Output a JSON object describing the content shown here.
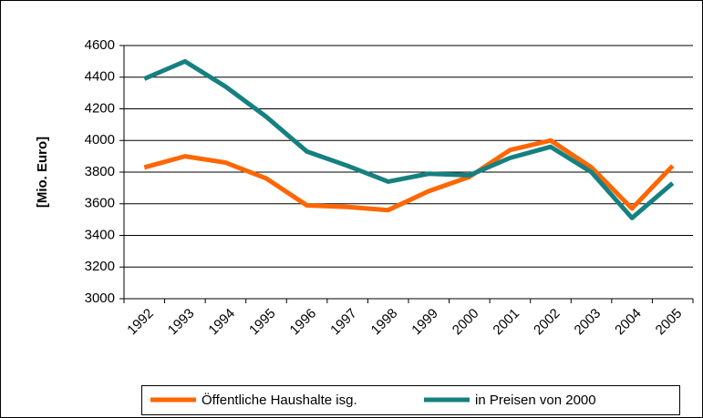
{
  "chart_data": {
    "type": "line",
    "y_label": "[Mio. Euro]",
    "categories": [
      "1992",
      "1993",
      "1994",
      "1995",
      "1996",
      "1997",
      "1998",
      "1999",
      "2000",
      "2001",
      "2002",
      "2003",
      "2004",
      "2005"
    ],
    "series": [
      {
        "name": "Öffentliche Haushalte isg.",
        "color": "#ff6600",
        "values": [
          3830,
          3900,
          3860,
          3760,
          3590,
          3580,
          3560,
          3680,
          3770,
          3940,
          4000,
          3830,
          3570,
          3840
        ]
      },
      {
        "name": "in Preisen von 2000",
        "color": "#168080",
        "values": [
          4390,
          4500,
          4340,
          4150,
          3930,
          3840,
          3740,
          3790,
          3780,
          3890,
          3960,
          3800,
          3510,
          3730
        ]
      }
    ],
    "ylim": [
      3000,
      4600
    ],
    "yticks": [
      3000,
      3200,
      3400,
      3600,
      3800,
      4000,
      4200,
      4400,
      4600
    ],
    "grid": true,
    "legend": "bottom"
  }
}
